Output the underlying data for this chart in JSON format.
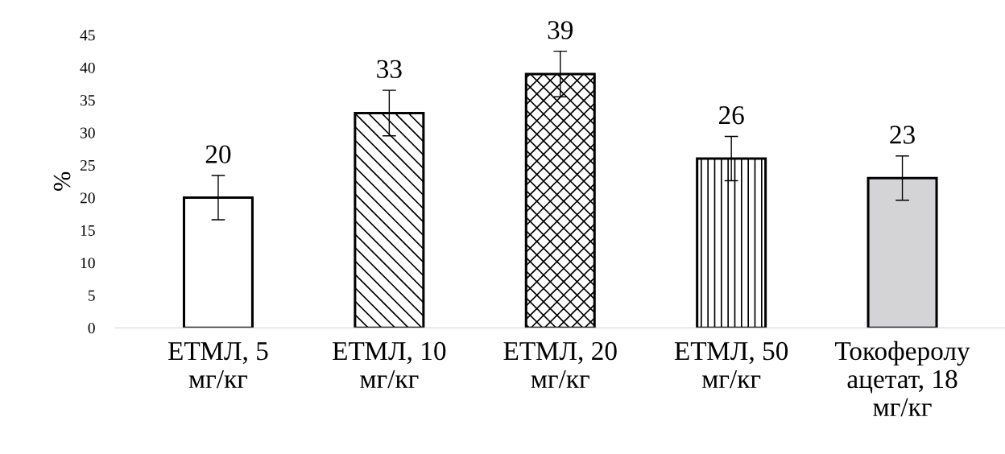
{
  "chart_data": {
    "type": "bar",
    "ylabel": "%",
    "categories": [
      "ЕТМЛ, 5\nмг/кг",
      "ЕТМЛ, 10\nмг/кг",
      "ЕТМЛ, 20\nмг/кг",
      "ЕТМЛ, 50\nмг/кг",
      "Токоферолу\nацетат, 18\nмг/кг"
    ],
    "values": [
      20,
      33,
      39,
      26,
      23
    ],
    "errors": [
      3.4,
      3.5,
      3.5,
      3.4,
      3.4
    ],
    "colors": [
      "#ffffff",
      "#000000",
      "#000000",
      "#000000",
      "#d4d3d5"
    ],
    "ylim": [
      0,
      45
    ],
    "yticks": [
      0,
      5,
      10,
      15,
      20,
      25,
      30,
      35,
      40,
      45
    ],
    "data_labels": true,
    "grid": false,
    "legend": false
  }
}
